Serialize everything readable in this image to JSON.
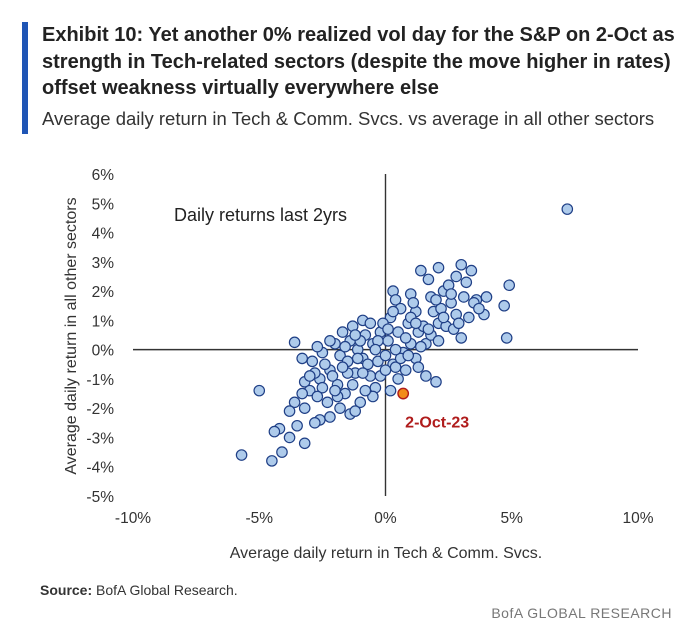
{
  "header": {
    "title": "Exhibit 10: Yet another 0% realized vol day for the S&P on 2-Oct as strength in Tech-related sectors (despite the move higher in rates) offset weakness virtually everywhere else",
    "subtitle": "Average daily return in Tech & Comm. Svcs. vs average in all other sectors"
  },
  "footer": {
    "source_label": "Source:",
    "source_text": "BofA Global Research.",
    "brand": "BofA GLOBAL RESEARCH"
  },
  "colors": {
    "accent": "#1f55b5",
    "point_fill": "#aecbeb",
    "point_stroke": "#1f3f86",
    "highlight_fill": "#f28c1a",
    "highlight_stroke": "#b01c1c",
    "highlight_label": "#b01c1c"
  },
  "chart_data": {
    "type": "scatter",
    "xlabel": "Average daily return in Tech & Comm. Svcs.",
    "ylabel": "Average daily return in all other sectors",
    "xlim": [
      -10,
      10
    ],
    "ylim": [
      -5,
      6
    ],
    "xticks": [
      -10,
      -5,
      0,
      5,
      10
    ],
    "yticks": [
      -5,
      -4,
      -3,
      -2,
      -1,
      0,
      1,
      2,
      3,
      4,
      5,
      6
    ],
    "tick_suffix": "%",
    "grid": false,
    "annotation": "Daily returns last 2yrs",
    "highlight": {
      "label": "2-Oct-23",
      "x": 0.7,
      "y": -1.5
    },
    "points": [
      [
        7.2,
        4.8
      ],
      [
        4.9,
        2.2
      ],
      [
        4.7,
        1.5
      ],
      [
        4.8,
        0.4
      ],
      [
        3.6,
        1.7
      ],
      [
        3.9,
        1.2
      ],
      [
        3.0,
        2.9
      ],
      [
        3.4,
        2.7
      ],
      [
        2.8,
        2.5
      ],
      [
        2.1,
        2.8
      ],
      [
        3.2,
        2.3
      ],
      [
        1.4,
        2.7
      ],
      [
        1.7,
        2.4
      ],
      [
        0.3,
        2.0
      ],
      [
        0.4,
        1.7
      ],
      [
        1.0,
        1.9
      ],
      [
        2.3,
        2.0
      ],
      [
        2.6,
        1.6
      ],
      [
        1.9,
        1.3
      ],
      [
        3.3,
        1.1
      ],
      [
        3.0,
        0.4
      ],
      [
        2.1,
        0.9
      ],
      [
        1.3,
        0.6
      ],
      [
        1.6,
        0.2
      ],
      [
        0.9,
        0.9
      ],
      [
        0.5,
        0.6
      ],
      [
        0.2,
        1.1
      ],
      [
        -0.2,
        0.6
      ],
      [
        -0.5,
        0.2
      ],
      [
        -0.8,
        0.5
      ],
      [
        -1.1,
        0.0
      ],
      [
        -1.4,
        0.3
      ],
      [
        -1.7,
        0.6
      ],
      [
        -2.0,
        0.2
      ],
      [
        -2.5,
        -0.1
      ],
      [
        -2.7,
        0.1
      ],
      [
        -3.6,
        0.25
      ],
      [
        -2.9,
        -0.4
      ],
      [
        -3.2,
        -1.1
      ],
      [
        -3.0,
        -1.4
      ],
      [
        -2.6,
        -1.0
      ],
      [
        -2.2,
        -0.7
      ],
      [
        -1.9,
        -1.2
      ],
      [
        -1.6,
        -1.5
      ],
      [
        -1.2,
        -0.8
      ],
      [
        -0.9,
        -0.3
      ],
      [
        -0.6,
        -0.9
      ],
      [
        -0.3,
        -0.4
      ],
      [
        0.0,
        -0.2
      ],
      [
        0.3,
        -0.5
      ],
      [
        0.5,
        -1.0
      ],
      [
        0.8,
        -0.7
      ],
      [
        1.2,
        -0.3
      ],
      [
        1.6,
        -0.9
      ],
      [
        2.0,
        -1.1
      ],
      [
        1.3,
        -0.6
      ],
      [
        0.7,
        -0.1
      ],
      [
        -0.4,
        -1.3
      ],
      [
        -1.0,
        -1.8
      ],
      [
        -1.4,
        -2.2
      ],
      [
        -1.8,
        -2.0
      ],
      [
        -2.3,
        -1.8
      ],
      [
        -2.6,
        -2.4
      ],
      [
        -3.2,
        -2.0
      ],
      [
        -3.6,
        -1.8
      ],
      [
        -3.8,
        -2.1
      ],
      [
        -4.2,
        -2.7
      ],
      [
        -4.5,
        -3.8
      ],
      [
        -5.7,
        -3.6
      ],
      [
        -5.0,
        -1.4
      ],
      [
        -3.2,
        -3.2
      ],
      [
        -3.8,
        -3.0
      ],
      [
        -4.1,
        -3.5
      ],
      [
        -4.4,
        -2.8
      ],
      [
        -3.5,
        -2.6
      ],
      [
        -2.8,
        -2.5
      ],
      [
        -2.2,
        -2.3
      ],
      [
        -1.2,
        -2.1
      ],
      [
        -0.5,
        -1.6
      ],
      [
        0.2,
        -1.4
      ],
      [
        0.4,
        -0.6
      ],
      [
        1.0,
        0.2
      ],
      [
        1.8,
        0.5
      ],
      [
        2.4,
        0.8
      ],
      [
        2.8,
        1.2
      ],
      [
        1.2,
        1.3
      ],
      [
        0.6,
        1.4
      ],
      [
        -0.1,
        0.9
      ],
      [
        -0.9,
        1.0
      ],
      [
        -1.3,
        0.8
      ],
      [
        -1.8,
        -0.2
      ],
      [
        -2.4,
        -0.5
      ],
      [
        -1.5,
        -0.4
      ],
      [
        -0.7,
        -0.5
      ],
      [
        0.1,
        0.3
      ],
      [
        0.8,
        0.4
      ],
      [
        1.5,
        0.8
      ],
      [
        2.2,
        1.4
      ],
      [
        2.7,
        0.7
      ],
      [
        3.5,
        1.6
      ],
      [
        4.0,
        1.8
      ],
      [
        1.1,
        1.6
      ],
      [
        0.3,
        1.3
      ],
      [
        -0.3,
        0.3
      ],
      [
        -1.0,
        0.3
      ],
      [
        -1.6,
        0.1
      ],
      [
        -2.1,
        -0.9
      ],
      [
        -2.8,
        -0.8
      ],
      [
        -3.0,
        -0.9
      ],
      [
        -1.9,
        -1.6
      ],
      [
        -1.3,
        -1.2
      ],
      [
        -0.8,
        -1.4
      ],
      [
        -0.2,
        -0.9
      ],
      [
        0.6,
        -0.3
      ],
      [
        1.4,
        0.1
      ],
      [
        2.1,
        0.3
      ],
      [
        2.9,
        0.9
      ],
      [
        1.8,
        1.8
      ],
      [
        2.5,
        2.2
      ],
      [
        3.1,
        1.8
      ],
      [
        0.1,
        0.7
      ],
      [
        -0.6,
        0.9
      ],
      [
        -1.2,
        0.5
      ],
      [
        -2.2,
        0.3
      ],
      [
        -2.5,
        -1.3
      ],
      [
        -1.1,
        -0.3
      ],
      [
        0.0,
        -0.7
      ],
      [
        0.9,
        -0.2
      ],
      [
        1.7,
        0.7
      ],
      [
        2.3,
        1.1
      ],
      [
        1.0,
        1.1
      ],
      [
        -0.4,
        0.0
      ],
      [
        -1.5,
        -0.8
      ],
      [
        -2.0,
        -1.4
      ],
      [
        -2.7,
        -1.6
      ],
      [
        -3.3,
        -1.5
      ],
      [
        -1.7,
        -0.6
      ],
      [
        -0.9,
        -0.8
      ],
      [
        0.4,
        0.0
      ],
      [
        1.2,
        0.9
      ],
      [
        2.0,
        1.7
      ],
      [
        2.6,
        1.9
      ],
      [
        3.7,
        1.4
      ],
      [
        -3.3,
        -0.3
      ]
    ]
  }
}
